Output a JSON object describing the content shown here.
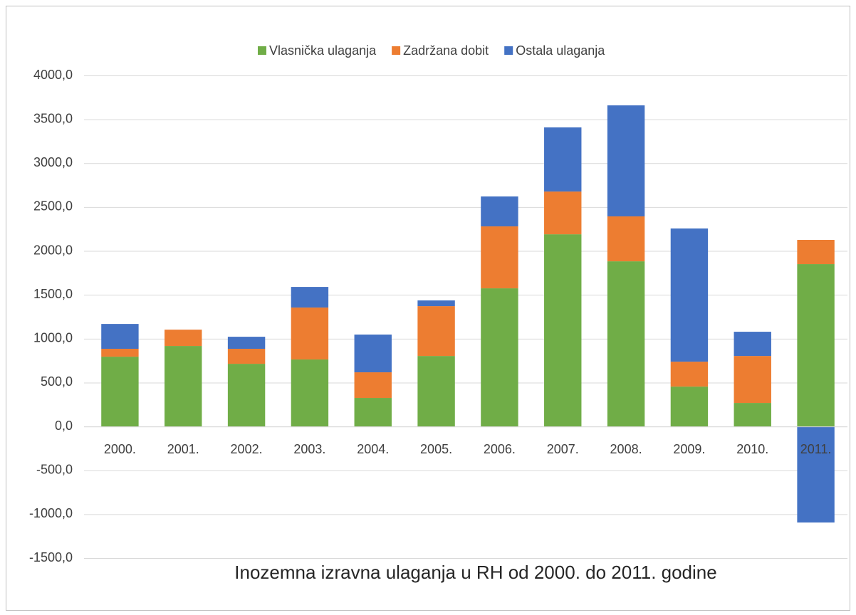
{
  "chart_data": {
    "type": "stacked_bar",
    "title": "Inozemna izravna ulaganja u RH od 2000. do 2011. godine",
    "categories": [
      "2000.",
      "2001.",
      "2002.",
      "2003.",
      "2004.",
      "2005.",
      "2006.",
      "2007.",
      "2008.",
      "2009.",
      "2010.",
      "2011."
    ],
    "series": [
      {
        "name": "Vlasnička ulaganja",
        "color": "#70ad47",
        "values": [
          795,
          917,
          714,
          763,
          325,
          803,
          1574,
          2190,
          1882,
          454,
          268,
          1850
        ]
      },
      {
        "name": "Zadržana dobit",
        "color": "#ed7d31",
        "values": [
          90,
          186,
          171,
          592,
          292,
          568,
          706,
          487,
          512,
          284,
          535,
          276
        ]
      },
      {
        "name": "Ostala ulaganja",
        "color": "#4472c4",
        "values": [
          283,
          0,
          137,
          235,
          430,
          65,
          341,
          731,
          1265,
          1518,
          276,
          -1095
        ]
      }
    ],
    "ylim": [
      -1500,
      4000
    ],
    "yticks": [
      {
        "value": -1500,
        "label": "-1500,0"
      },
      {
        "value": -1000,
        "label": "-1000,0"
      },
      {
        "value": -500,
        "label": "-500,0"
      },
      {
        "value": 0,
        "label": "0,0"
      },
      {
        "value": 500,
        "label": "500,0"
      },
      {
        "value": 1000,
        "label": "1000,0"
      },
      {
        "value": 1500,
        "label": "1500,0"
      },
      {
        "value": 2000,
        "label": "2000,0"
      },
      {
        "value": 2500,
        "label": "2500,0"
      },
      {
        "value": 3000,
        "label": "3000,0"
      },
      {
        "value": 3500,
        "label": "3500,0"
      },
      {
        "value": 4000,
        "label": "4000,0"
      }
    ],
    "grid": true,
    "legend": "top"
  }
}
